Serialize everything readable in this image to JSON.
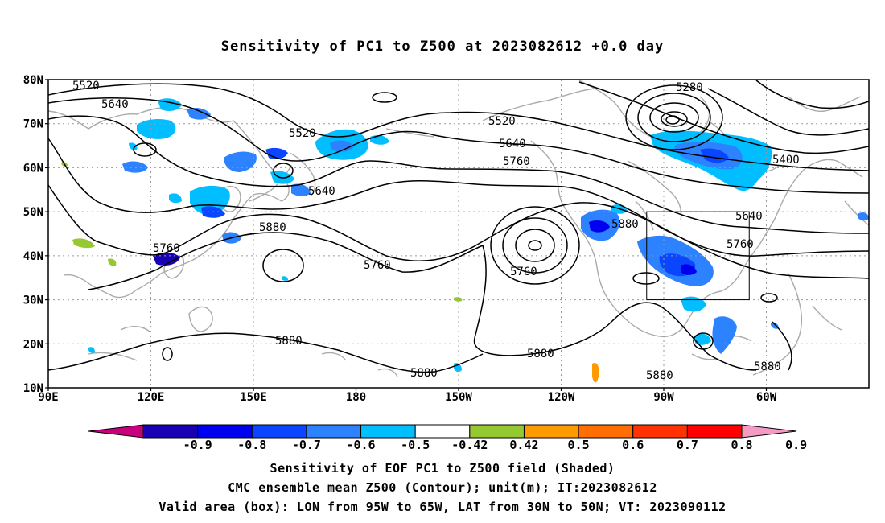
{
  "title": "Sensitivity of PC1 to Z500 at 2023082612 +0.0 day",
  "map": {
    "lat_labels": [
      "80N",
      "70N",
      "60N",
      "50N",
      "40N",
      "30N",
      "20N",
      "10N"
    ],
    "lon_labels": [
      "90E",
      "120E",
      "150E",
      "180",
      "150W",
      "120W",
      "90W",
      "60W"
    ],
    "contour_labels": [
      {
        "value": "5520",
        "where": "west-high"
      },
      {
        "value": "5640",
        "where": "west-high"
      },
      {
        "value": "5520",
        "where": "central-north"
      },
      {
        "value": "5640",
        "where": "central"
      },
      {
        "value": "5880",
        "where": "central"
      },
      {
        "value": "5760",
        "where": "east-asia"
      },
      {
        "value": "5760",
        "where": "central-south"
      },
      {
        "value": "5760",
        "where": "north-pacific-low"
      },
      {
        "value": "5880",
        "where": "south"
      },
      {
        "value": "5880",
        "where": "south-central"
      },
      {
        "value": "5880",
        "where": "east-pacific"
      },
      {
        "value": "5880",
        "where": "north-america"
      },
      {
        "value": "5880",
        "where": "gulf"
      },
      {
        "value": "5880",
        "where": "atlantic"
      },
      {
        "value": "5520",
        "where": "northeast"
      },
      {
        "value": "5640",
        "where": "northeast"
      },
      {
        "value": "5760",
        "where": "northeast"
      },
      {
        "value": "5280",
        "where": "hudson-low"
      },
      {
        "value": "5400",
        "where": "atlantic-north"
      },
      {
        "value": "5640",
        "where": "east-coast"
      },
      {
        "value": "5760",
        "where": "east-coast"
      }
    ],
    "valid_box": {
      "lon_west": -95,
      "lon_east": -65,
      "lat_south": 30,
      "lat_north": 50
    }
  },
  "colorbar": {
    "labels": [
      "-0.9",
      "-0.8",
      "-0.7",
      "-0.6",
      "-0.5",
      "-0.42",
      "0.42",
      "0.5",
      "0.6",
      "0.7",
      "0.8",
      "0.9"
    ],
    "colors": [
      "#c8007d",
      "#1800b4",
      "#0000f0",
      "#0a46ff",
      "#2d82ff",
      "#00beff",
      "#ffffff",
      "#96c832",
      "#ff9b00",
      "#ff6e00",
      "#ff3200",
      "#ff0000",
      "#f59bc3"
    ]
  },
  "captions": {
    "line1": "Sensitivity of EOF PC1 to Z500 field (Shaded)",
    "line2": "CMC ensemble mean Z500 (Contour); unit(m); IT:2023082612",
    "line3": "Valid area (box): LON from 95W to 65W, LAT from 30N to 50N; VT: 2023090112"
  }
}
